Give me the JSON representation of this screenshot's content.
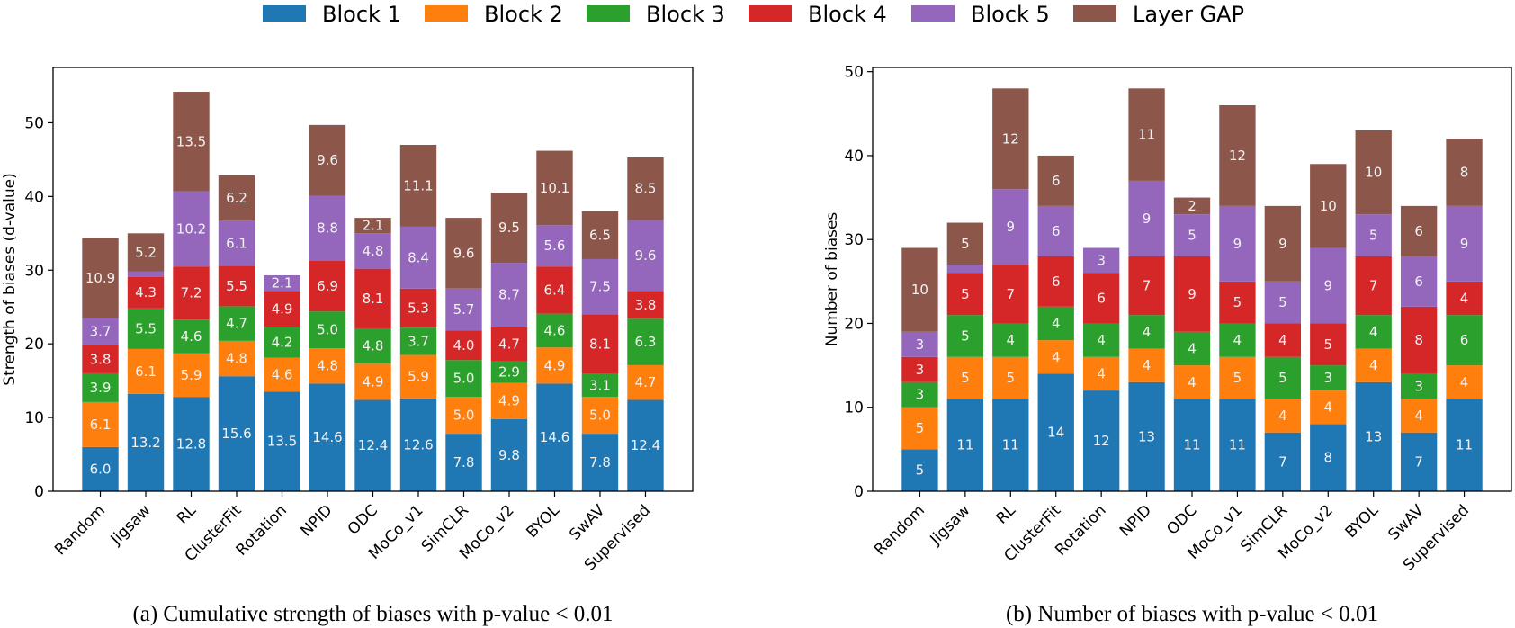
{
  "legend": {
    "items": [
      "Block 1",
      "Block 2",
      "Block 3",
      "Block 4",
      "Block 5",
      "Layer GAP"
    ],
    "colors": [
      "#1f77b4",
      "#ff7f0e",
      "#2ca02c",
      "#d62728",
      "#9467bd",
      "#8c564b"
    ],
    "placement": "top-center"
  },
  "chart_data": [
    {
      "type": "bar",
      "stacked": true,
      "caption": "(a) Cumulative strength of biases with p-value < 0.01",
      "xlabel": "",
      "ylabel": "Strength of biases (d-value)",
      "ylim": [
        0,
        57.5
      ],
      "yticks": [
        0,
        10,
        20,
        30,
        40,
        50
      ],
      "grid": false,
      "categories": [
        "Random",
        "Jigsaw",
        "RL",
        "ClusterFit",
        "Rotation",
        "NPID",
        "ODC",
        "MoCo_v1",
        "SimCLR",
        "MoCo_v2",
        "BYOL",
        "SwAV",
        "Supervised"
      ],
      "series": [
        {
          "name": "Block 1",
          "values": [
            6.0,
            13.2,
            12.8,
            15.6,
            13.5,
            14.6,
            12.4,
            12.6,
            7.8,
            9.8,
            14.6,
            7.8,
            12.4
          ]
        },
        {
          "name": "Block 2",
          "values": [
            6.1,
            6.1,
            5.9,
            4.8,
            4.6,
            4.8,
            4.9,
            5.9,
            5.0,
            4.9,
            4.9,
            5.0,
            4.7
          ]
        },
        {
          "name": "Block 3",
          "values": [
            3.9,
            5.5,
            4.6,
            4.7,
            4.2,
            5.0,
            4.8,
            3.7,
            5.0,
            2.9,
            4.6,
            3.1,
            6.3
          ]
        },
        {
          "name": "Block 4",
          "values": [
            3.8,
            4.3,
            7.2,
            5.5,
            4.9,
            6.9,
            8.1,
            5.3,
            4.0,
            4.7,
            6.4,
            8.1,
            3.8
          ]
        },
        {
          "name": "Block 5",
          "values": [
            3.7,
            0.7,
            10.2,
            6.1,
            2.1,
            8.8,
            4.8,
            8.4,
            5.7,
            8.7,
            5.6,
            7.5,
            9.6
          ]
        },
        {
          "name": "Layer GAP",
          "values": [
            10.9,
            5.2,
            13.5,
            6.2,
            0,
            9.6,
            2.1,
            11.1,
            9.6,
            9.5,
            10.1,
            6.5,
            8.5
          ]
        }
      ],
      "label_decimals": 1
    },
    {
      "type": "bar",
      "stacked": true,
      "caption": "(b) Number of biases with p-value < 0.01",
      "xlabel": "",
      "ylabel": "Number of biases",
      "ylim": [
        0,
        50.5
      ],
      "yticks": [
        0,
        10,
        20,
        30,
        40,
        50
      ],
      "grid": false,
      "categories": [
        "Random",
        "Jigsaw",
        "RL",
        "ClusterFit",
        "Rotation",
        "NPID",
        "ODC",
        "MoCo_v1",
        "SimCLR",
        "MoCo_v2",
        "BYOL",
        "SwAV",
        "Supervised"
      ],
      "series": [
        {
          "name": "Block 1",
          "values": [
            5,
            11,
            11,
            14,
            12,
            13,
            11,
            11,
            7,
            8,
            13,
            7,
            11
          ]
        },
        {
          "name": "Block 2",
          "values": [
            5,
            5,
            5,
            4,
            4,
            4,
            4,
            5,
            4,
            4,
            4,
            4,
            4
          ]
        },
        {
          "name": "Block 3",
          "values": [
            3,
            5,
            4,
            4,
            4,
            4,
            4,
            4,
            5,
            3,
            4,
            3,
            6
          ]
        },
        {
          "name": "Block 4",
          "values": [
            3,
            5,
            7,
            6,
            6,
            7,
            9,
            5,
            4,
            5,
            7,
            8,
            4
          ]
        },
        {
          "name": "Block 5",
          "values": [
            3,
            1,
            9,
            6,
            3,
            9,
            5,
            9,
            5,
            9,
            5,
            6,
            9
          ]
        },
        {
          "name": "Layer GAP",
          "values": [
            10,
            5,
            12,
            6,
            0,
            11,
            2,
            12,
            9,
            10,
            10,
            6,
            8
          ]
        }
      ],
      "label_decimals": 0
    }
  ]
}
